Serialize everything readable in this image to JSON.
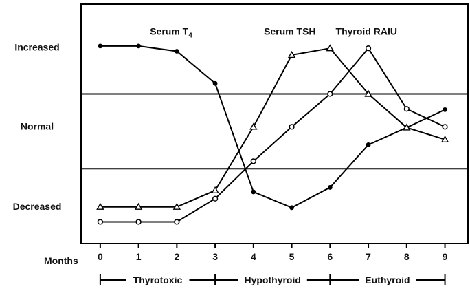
{
  "chart_data": {
    "type": "line",
    "x": [
      0,
      1,
      2,
      3,
      4,
      5,
      6,
      7,
      8,
      9
    ],
    "xlabel": "Months",
    "xlim": [
      -0.5,
      9.6
    ],
    "ylim": [
      -0.5,
      2.7
    ],
    "y_bands": [
      "Decreased",
      "Normal",
      "Increased"
    ],
    "band_lines": [
      0.5,
      1.5
    ],
    "grid": false,
    "legend": "inline labels",
    "series": [
      {
        "name": "Serum T",
        "name_sub": "4",
        "marker": "filled-circle",
        "x": [
          0,
          1,
          2,
          3,
          4,
          5,
          6,
          7,
          8,
          9
        ],
        "values": [
          2.14,
          2.14,
          2.07,
          1.64,
          0.19,
          -0.02,
          0.25,
          0.82,
          1.05,
          1.29
        ]
      },
      {
        "name": "Serum TSH",
        "marker": "open-triangle",
        "x": [
          0,
          1,
          2,
          3,
          4,
          5,
          6,
          7,
          8,
          9
        ],
        "values": [
          -0.01,
          -0.01,
          -0.01,
          0.21,
          1.06,
          2.02,
          2.11,
          1.5,
          1.05,
          0.89
        ]
      },
      {
        "name": "Thyroid RAIU",
        "marker": "open-circle",
        "x": [
          0,
          1,
          2,
          3,
          4,
          5,
          6,
          7,
          8,
          9
        ],
        "values": [
          -0.21,
          -0.21,
          -0.21,
          0.1,
          0.6,
          1.06,
          1.5,
          2.11,
          1.3,
          1.06
        ]
      }
    ],
    "phases": [
      {
        "label": "Thyrotoxic",
        "from": 0,
        "to": 3
      },
      {
        "label": "Hypothyroid",
        "from": 3,
        "to": 6
      },
      {
        "label": "Euthyroid",
        "from": 6,
        "to": 9
      }
    ]
  }
}
